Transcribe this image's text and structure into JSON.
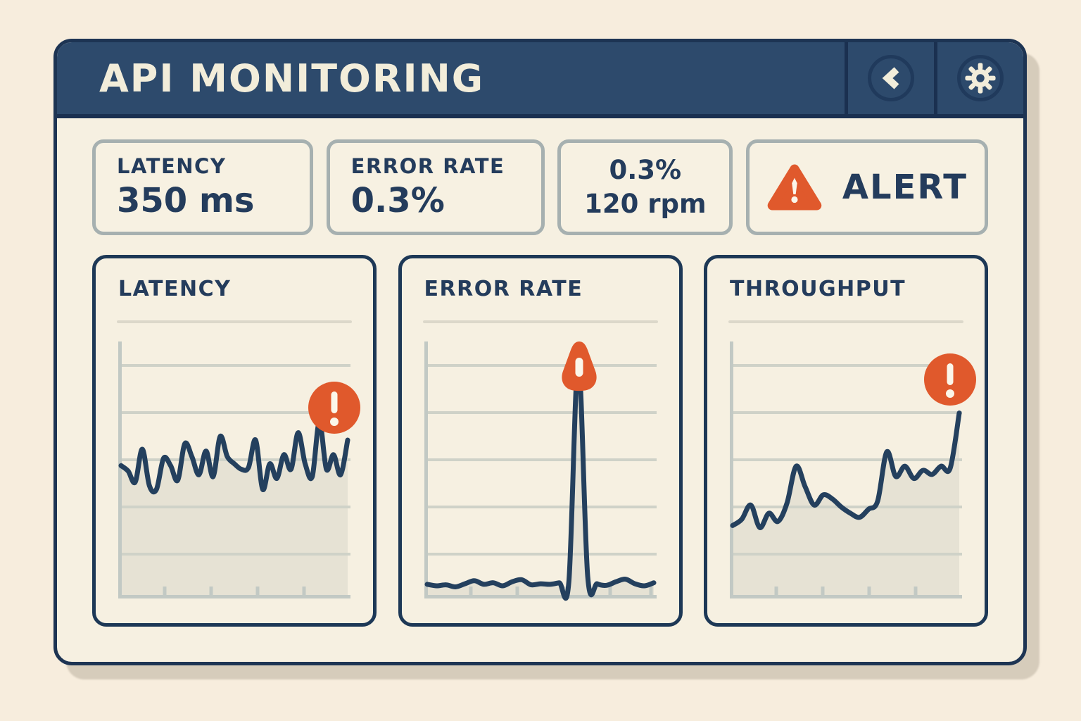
{
  "header": {
    "title": "API MONITORING",
    "buttons": [
      {
        "name": "back",
        "icon": "chevron-left-icon"
      },
      {
        "name": "settings",
        "icon": "gear-icon"
      }
    ]
  },
  "stats": {
    "latency": {
      "label": "LATENCY",
      "value": "350 ms"
    },
    "error_rate": {
      "label": "ERROR RATE",
      "value": "0.3%"
    },
    "summary": {
      "line1": "0.3%",
      "line2": "120 rpm"
    },
    "alert": {
      "label": "ALERT",
      "icon": "warning-triangle-icon"
    }
  },
  "colors": {
    "navy_header": "#2d4a6c",
    "navy_dark": "#1a3050",
    "ink": "#243c5c",
    "orange_alert": "#e0592c",
    "cream_window": "#f6f0e1",
    "page_background": "#f7eddd",
    "card_border": "#a6b0b0",
    "line": "#24405e",
    "axis": "#c2c9c4",
    "gridline": "#cfd2c8",
    "chart_fill": "#e6e2d4",
    "separator": "#dcd8ca",
    "title_text": "#f2edda"
  },
  "chart_data": [
    {
      "type": "area",
      "title": "LATENCY",
      "unit": "ms",
      "ylim": [
        0,
        700
      ],
      "x_ticks": 4,
      "grid": true,
      "legend": "none",
      "alert_marker": {
        "type": "circle-badge",
        "position": "top-right"
      },
      "values": [
        360,
        345,
        315,
        405,
        305,
        295,
        380,
        360,
        320,
        420,
        385,
        335,
        400,
        330,
        440,
        385,
        365,
        350,
        355,
        430,
        295,
        365,
        325,
        390,
        350,
        450,
        365,
        330,
        480,
        350,
        390,
        335,
        430
      ]
    },
    {
      "type": "area",
      "title": "ERROR RATE",
      "unit": "%",
      "ylim": [
        0,
        5
      ],
      "x_ticks": 5,
      "grid": true,
      "legend": "none",
      "alert_marker": {
        "type": "pin-badge",
        "position": "spike-apex"
      },
      "values": [
        0.25,
        0.22,
        0.24,
        0.2,
        0.26,
        0.32,
        0.25,
        0.28,
        0.22,
        0.3,
        0.34,
        0.24,
        0.26,
        0.25,
        0.28,
        0.3,
        4.6,
        0.4,
        0.26,
        0.23,
        0.3,
        0.35,
        0.26,
        0.22,
        0.28
      ]
    },
    {
      "type": "area",
      "title": "THROUGHPUT",
      "unit": "rpm",
      "ylim": [
        0,
        250
      ],
      "x_ticks": 4,
      "grid": true,
      "legend": "none",
      "alert_marker": {
        "type": "circle-badge",
        "position": "top-right"
      },
      "values": [
        70,
        76,
        90,
        68,
        82,
        74,
        92,
        128,
        108,
        90,
        100,
        96,
        88,
        82,
        78,
        86,
        94,
        142,
        118,
        128,
        116,
        124,
        120,
        128,
        126,
        180
      ]
    }
  ]
}
